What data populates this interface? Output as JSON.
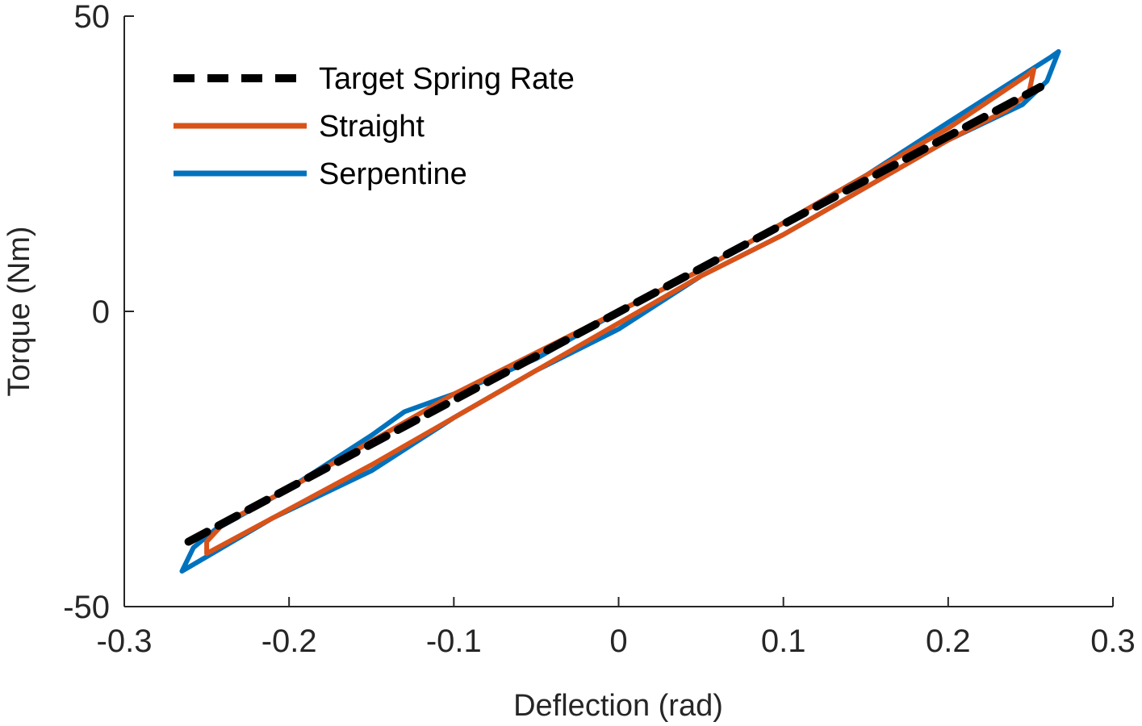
{
  "chart_data": {
    "type": "line",
    "title": "",
    "xlabel": "Deflection (rad)",
    "ylabel": "Torque (Nm)",
    "xlim": [
      -0.3,
      0.3
    ],
    "ylim": [
      -50,
      50
    ],
    "xticks": [
      -0.3,
      -0.2,
      -0.1,
      0,
      0.1,
      0.2,
      0.3
    ],
    "xtick_labels": [
      "-0.3",
      "-0.2",
      "-0.1",
      "0",
      "0.1",
      "0.2",
      "0.3"
    ],
    "yticks": [
      -50,
      0,
      50
    ],
    "ytick_labels": [
      "-50",
      "0",
      "50"
    ],
    "grid": false,
    "legend_position": "top-left",
    "series": [
      {
        "name": "Target Spring Rate",
        "color": "#000000",
        "style": "dashed",
        "x": [
          -0.261,
          0.256
        ],
        "y": [
          -39,
          38
        ]
      },
      {
        "name": "Straight",
        "color": "#D95319",
        "style": "solid",
        "x": [
          -0.25,
          -0.21,
          -0.15,
          -0.1,
          -0.05,
          0.0,
          0.05,
          0.1,
          0.15,
          0.2,
          0.235,
          0.249,
          0.252,
          0.248,
          0.2,
          0.15,
          0.1,
          0.05,
          0.0,
          -0.05,
          -0.1,
          -0.15,
          -0.2,
          -0.24,
          -0.25,
          -0.25
        ],
        "y": [
          -41,
          -35,
          -26,
          -18,
          -10,
          -2,
          6,
          13,
          21,
          29,
          34,
          37,
          41,
          40,
          31,
          23,
          15,
          7,
          0,
          -7,
          -14,
          -22,
          -30,
          -36,
          -39,
          -41
        ]
      },
      {
        "name": "Serpentine",
        "color": "#0072BD",
        "style": "solid",
        "x": [
          -0.265,
          -0.21,
          -0.15,
          -0.1,
          -0.05,
          0.0,
          0.05,
          0.1,
          0.15,
          0.2,
          0.245,
          0.26,
          0.267,
          0.262,
          0.2,
          0.15,
          0.1,
          0.05,
          0.0,
          -0.05,
          -0.1,
          -0.13,
          -0.15,
          -0.2,
          -0.245,
          -0.258,
          -0.265
        ],
        "y": [
          -44,
          -35,
          -27,
          -18,
          -10,
          -3,
          6,
          13,
          21,
          29,
          35,
          39,
          44,
          43,
          32,
          23,
          15,
          7,
          0,
          -8,
          -14,
          -17,
          -21,
          -30,
          -37,
          -40,
          -44
        ]
      }
    ]
  }
}
